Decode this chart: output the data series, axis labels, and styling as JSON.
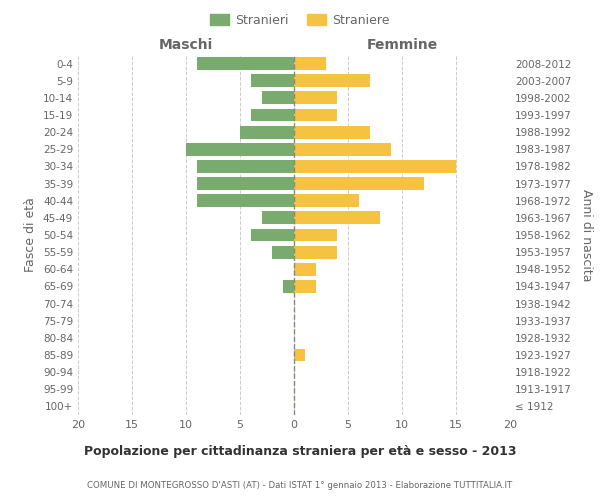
{
  "age_groups": [
    "100+",
    "95-99",
    "90-94",
    "85-89",
    "80-84",
    "75-79",
    "70-74",
    "65-69",
    "60-64",
    "55-59",
    "50-54",
    "45-49",
    "40-44",
    "35-39",
    "30-34",
    "25-29",
    "20-24",
    "15-19",
    "10-14",
    "5-9",
    "0-4"
  ],
  "birth_years": [
    "≤ 1912",
    "1913-1917",
    "1918-1922",
    "1923-1927",
    "1928-1932",
    "1933-1937",
    "1938-1942",
    "1943-1947",
    "1948-1952",
    "1953-1957",
    "1958-1962",
    "1963-1967",
    "1968-1972",
    "1973-1977",
    "1978-1982",
    "1983-1987",
    "1988-1992",
    "1993-1997",
    "1998-2002",
    "2003-2007",
    "2008-2012"
  ],
  "males": [
    0,
    0,
    0,
    0,
    0,
    0,
    0,
    1,
    0,
    2,
    4,
    3,
    9,
    9,
    9,
    10,
    5,
    4,
    3,
    4,
    9
  ],
  "females": [
    0,
    0,
    0,
    1,
    0,
    0,
    0,
    2,
    2,
    4,
    4,
    8,
    6,
    12,
    15,
    9,
    7,
    4,
    4,
    7,
    3
  ],
  "male_color": "#7aab6e",
  "female_color": "#f5c242",
  "title": "Popolazione per cittadinanza straniera per età e sesso - 2013",
  "subtitle": "COMUNE DI MONTEGROSSO D'ASTI (AT) - Dati ISTAT 1° gennaio 2013 - Elaborazione TUTTITALIA.IT",
  "xlabel_left": "Maschi",
  "xlabel_right": "Femmine",
  "ylabel_left": "Fasce di età",
  "ylabel_right": "Anni di nascita",
  "legend_male": "Stranieri",
  "legend_female": "Straniere",
  "xlim": 20,
  "background_color": "#ffffff",
  "grid_color": "#cccccc",
  "text_color": "#666666"
}
